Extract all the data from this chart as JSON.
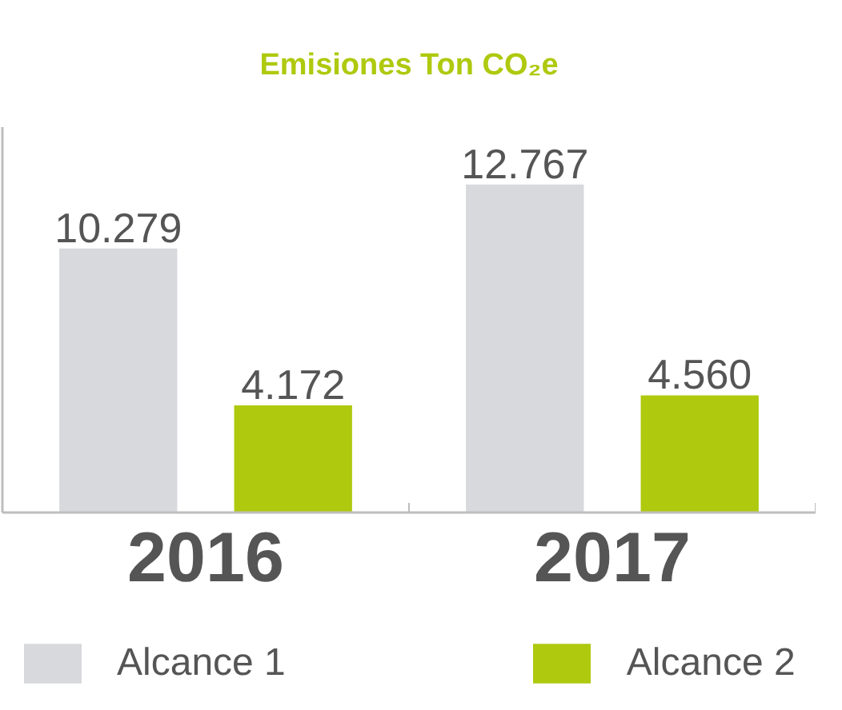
{
  "chart_data": {
    "type": "bar",
    "title": "Emisiones Ton CO₂e",
    "categories": [
      "2016",
      "2017"
    ],
    "series": [
      {
        "name": "Alcance 1",
        "color": "#d8d9dc",
        "values": [
          10279,
          12767
        ],
        "value_labels": [
          "10.279",
          "12.767"
        ]
      },
      {
        "name": "Alcance 2",
        "color": "#afc90e",
        "values": [
          4172,
          4560
        ],
        "value_labels": [
          "4.172",
          "4.560"
        ]
      }
    ],
    "grid": false,
    "legend": "bottom",
    "tick_labels": "x"
  }
}
